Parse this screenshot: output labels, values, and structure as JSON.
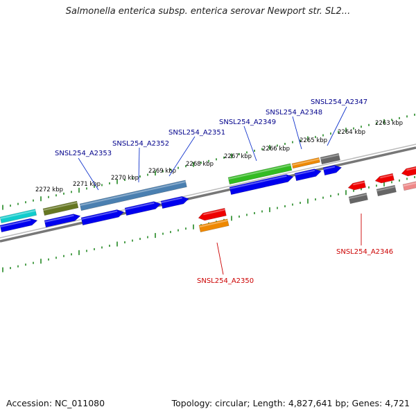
{
  "header": {
    "title": "Salmonella enterica subsp. enterica serovar Newport str. SL2..."
  },
  "footer": {
    "accession": "Accession: NC_011080",
    "stats": "Topology: circular; Length: 4,827,641 bp; Genes: 4,721"
  },
  "scale_ticks": [
    {
      "label": "2272 kbp"
    },
    {
      "label": "2271 kbp"
    },
    {
      "label": "2270 kbp"
    },
    {
      "label": "2269 kbp"
    },
    {
      "label": "2268 kbp"
    },
    {
      "label": "2267 kbp"
    },
    {
      "label": "2266 kbp"
    },
    {
      "label": "2265 kbp"
    },
    {
      "label": "2264 kbp"
    },
    {
      "label": "2263 kbp"
    }
  ],
  "gene_labels_plus": [
    {
      "text": "SNSL254_A2353"
    },
    {
      "text": "SNSL254_A2352"
    },
    {
      "text": "SNSL254_A2351"
    },
    {
      "text": "SNSL254_A2349"
    },
    {
      "text": "SNSL254_A2348"
    },
    {
      "text": "SNSL254_A2347"
    }
  ],
  "gene_labels_minus": [
    {
      "text": "SNSL254_A2350"
    },
    {
      "text": "SNSL254_A2346"
    }
  ],
  "colors": {
    "cds": "#0000ee",
    "gene_red": "#ee0000",
    "gene_orange": "#ee8800",
    "gene_green": "#33bb22",
    "gene_olive": "#667722",
    "gene_steel": "#4a7fb0",
    "gene_cyan": "#11cccc",
    "gene_gray": "#666666",
    "tick": "#228822",
    "backbone": "#888888"
  }
}
